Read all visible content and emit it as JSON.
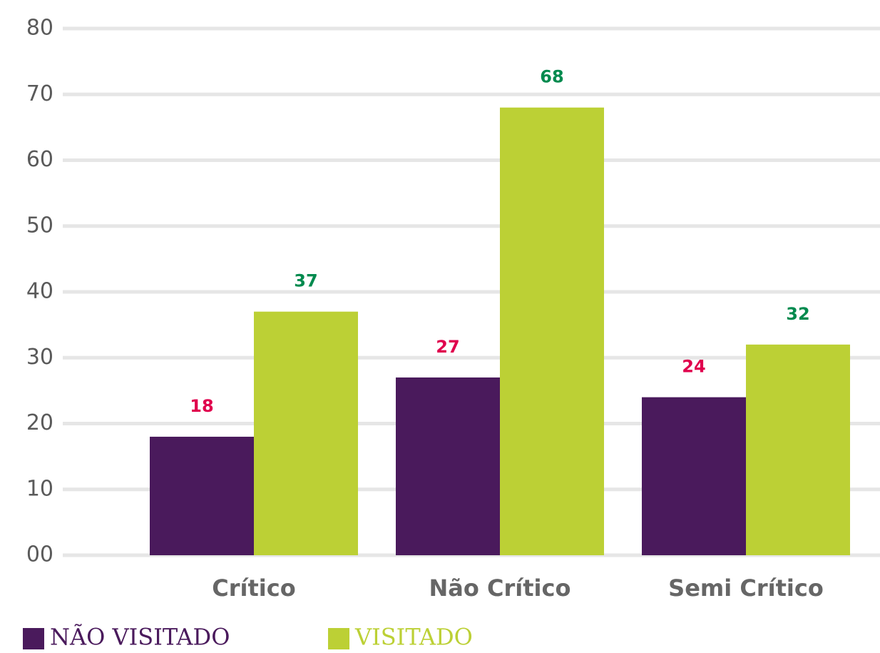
{
  "chart_data": {
    "type": "bar",
    "categories": [
      "Crítico",
      "Não Crítico",
      "Semi Crítico"
    ],
    "series": [
      {
        "name": "NÃO VISITADO",
        "color": "#4a1a5c",
        "label_color": "#e0004d",
        "values": [
          18,
          27,
          24
        ]
      },
      {
        "name": "VISITADO",
        "color": "#bcd035",
        "label_color": "#008a4e",
        "values": [
          37,
          68,
          32
        ]
      }
    ],
    "ylim": [
      0,
      80
    ],
    "yticks": [
      {
        "value": 0,
        "label": "00"
      },
      10,
      20,
      30,
      40,
      50,
      60,
      70,
      80
    ],
    "grid": true,
    "legend": "bottom-left"
  }
}
